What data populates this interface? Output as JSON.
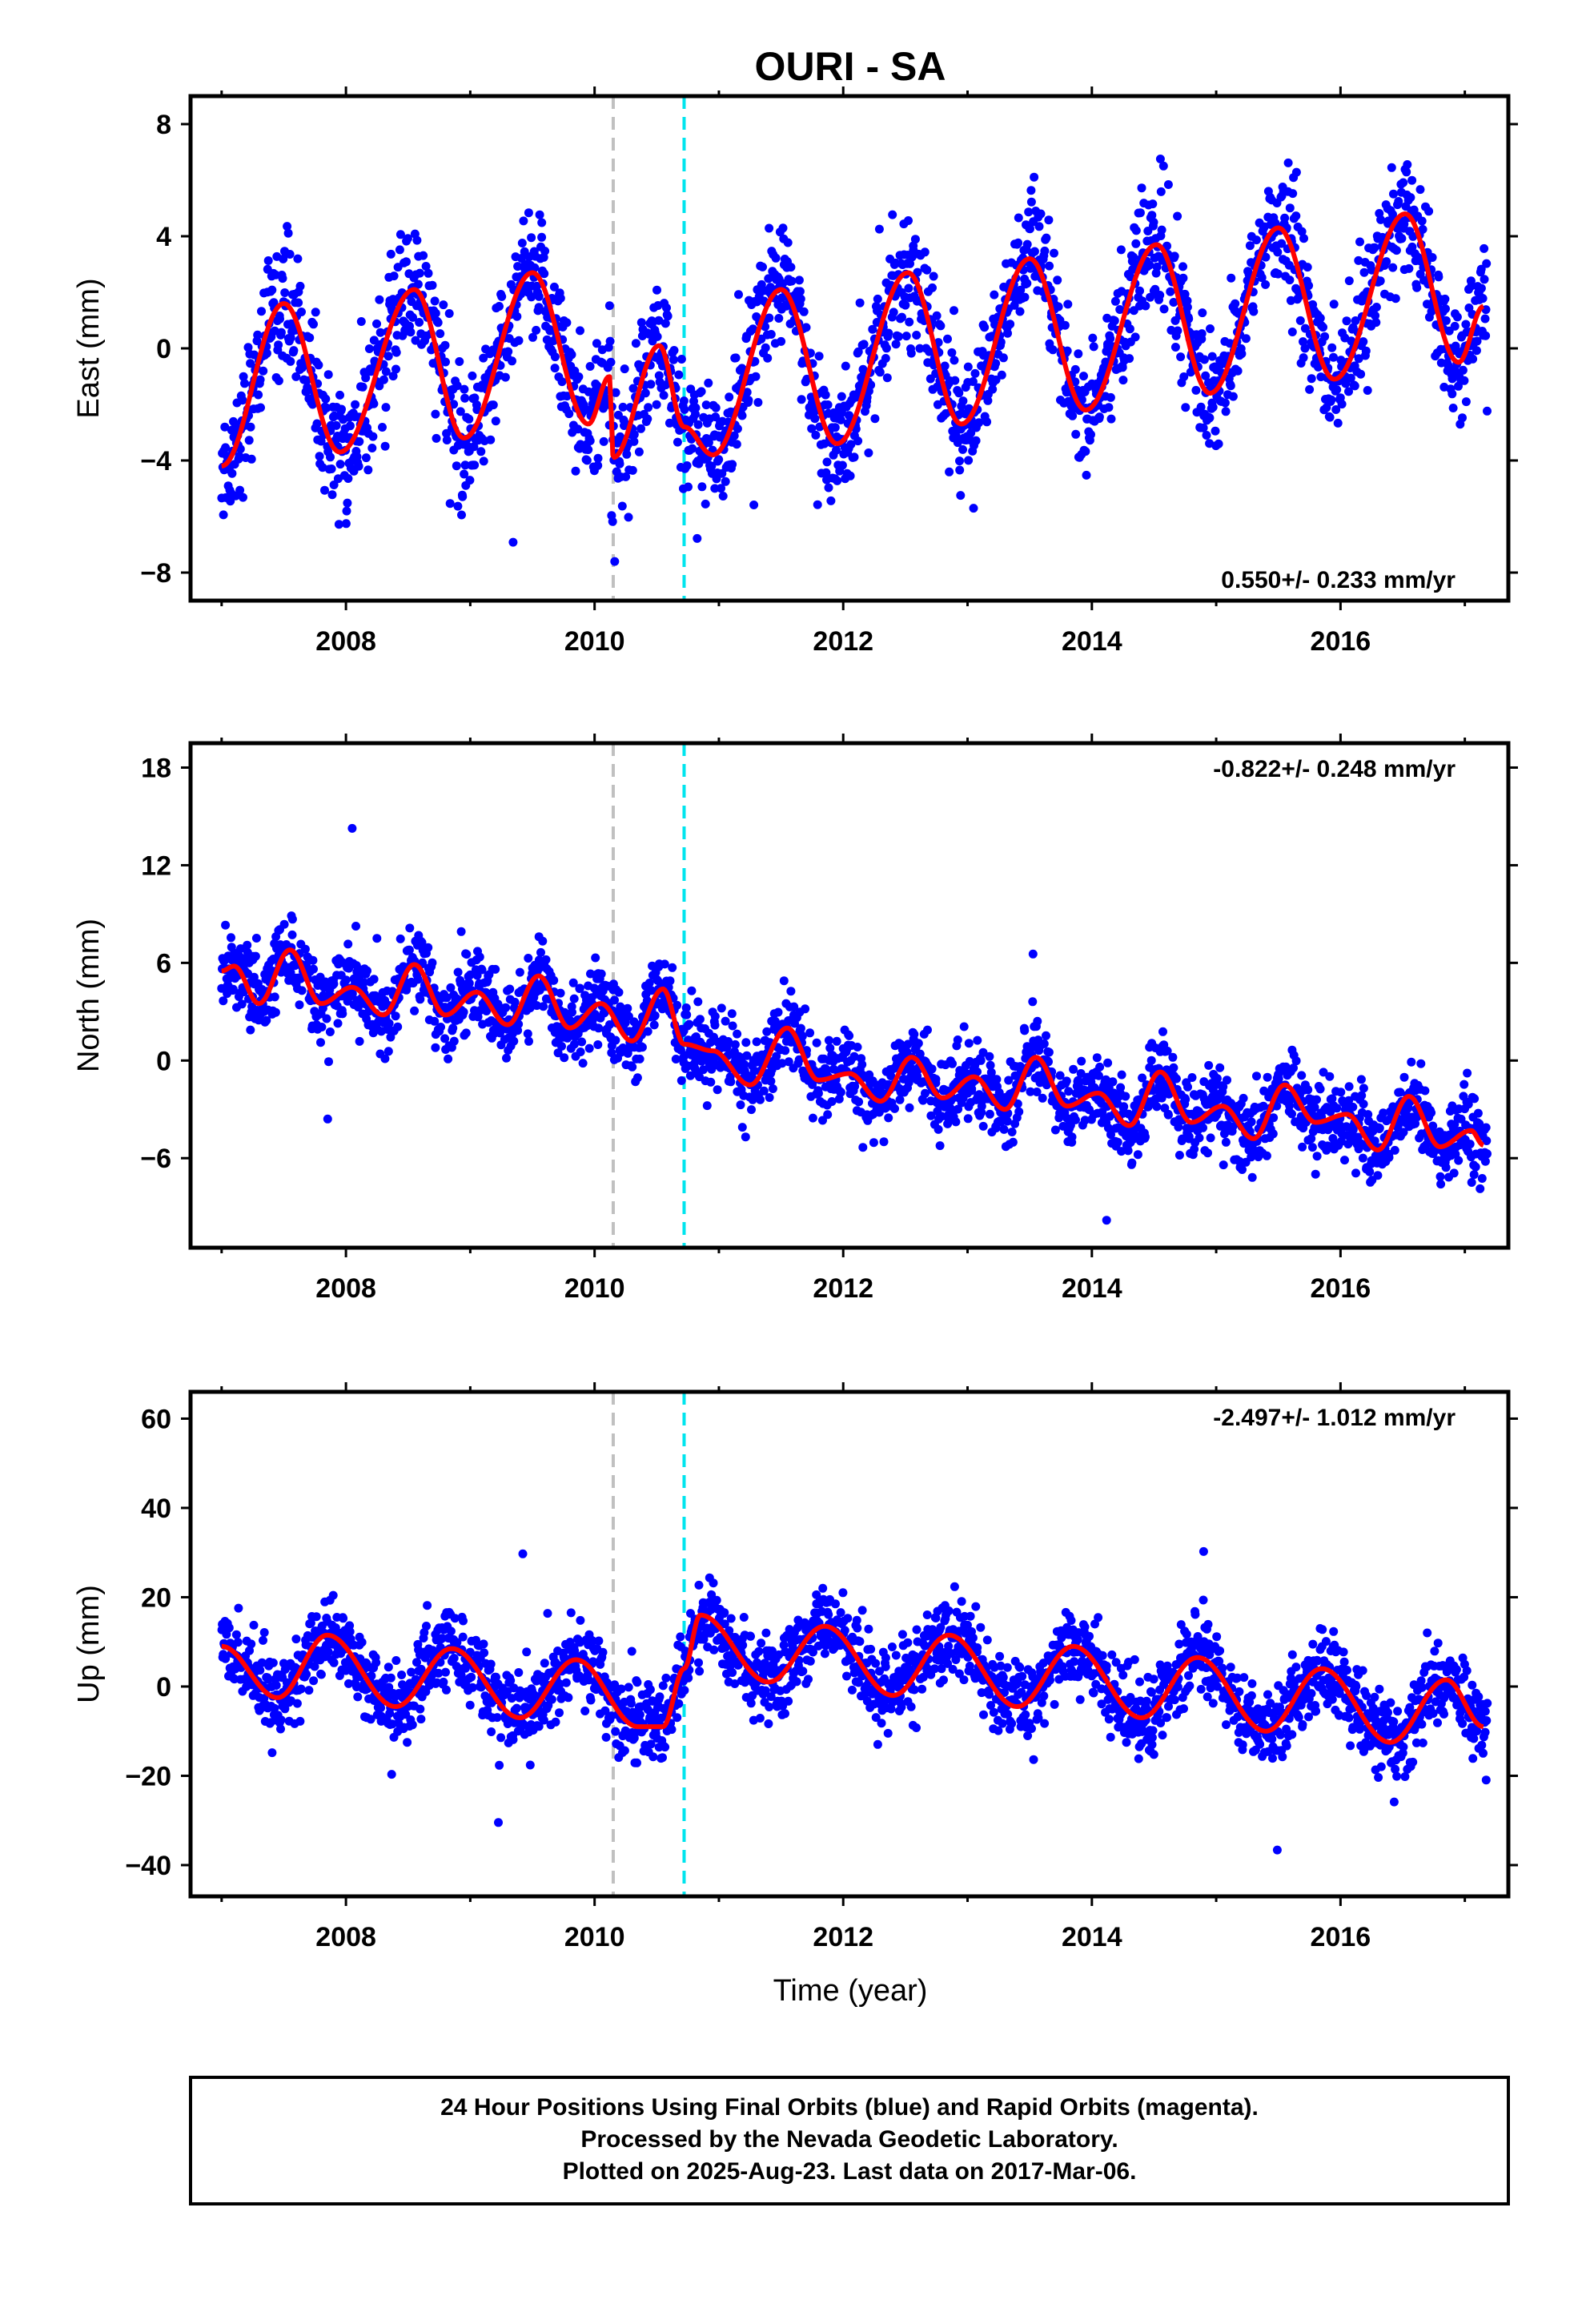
{
  "title": "OURI - SA",
  "x_axis_label": "Time (year)",
  "footer": {
    "line1": "24 Hour Positions Using Final Orbits (blue) and Rapid Orbits (magenta).",
    "line2": "Processed by the Nevada Geodetic Laboratory.",
    "line3": "Plotted on 2025-Aug-23. Last data on 2017-Mar-06."
  },
  "colors": {
    "final_orbits": "#0000ff",
    "model_fit": "#ff0000",
    "event_gray": "#c0c0c0",
    "event_cyan": "#00e5ee"
  },
  "chart_data": [
    {
      "type": "scatter",
      "title": "OURI - SA",
      "ylabel": "East (mm)",
      "xlabel": "",
      "xlim": [
        2006.75,
        2017.35
      ],
      "ylim": [
        -9,
        9
      ],
      "x_ticks": [
        2008,
        2010,
        2012,
        2014,
        2016
      ],
      "y_ticks": [
        -8,
        -4,
        0,
        4,
        8
      ],
      "grid": false,
      "rate_label": "0.550+/- 0.233 mm/yr",
      "rate_position": "bottom-right",
      "events": [
        {
          "x": 2010.15,
          "color": "gray"
        },
        {
          "x": 2010.72,
          "color": "cyan"
        }
      ],
      "data_span": [
        2007.0,
        2017.18
      ],
      "series": [
        {
          "style": "points",
          "color": "blue",
          "trend": {
            "at": 2007.0,
            "value": -1.6,
            "rate": 0.55
          },
          "seasonal": {
            "annual_amplitude": 3.1,
            "peak_year_fraction": 0.55
          },
          "scatter_sd": 1.1
        },
        {
          "style": "line",
          "color": "red",
          "x": [
            2007.0,
            2007.5,
            2007.95,
            2008.55,
            2008.95,
            2009.5,
            2009.95,
            2010.12,
            2010.15,
            2010.52,
            2010.72,
            2010.95,
            2011.5,
            2011.95,
            2012.52,
            2012.95,
            2013.5,
            2013.95,
            2014.52,
            2014.95,
            2015.5,
            2015.95,
            2016.52,
            2016.95,
            2017.15
          ],
          "values": [
            -4.2,
            1.6,
            -3.7,
            2.1,
            -3.2,
            2.7,
            -2.7,
            -1.0,
            -3.9,
            0.1,
            -2.8,
            -3.8,
            2.1,
            -3.4,
            2.7,
            -2.7,
            3.2,
            -2.2,
            3.7,
            -1.6,
            4.3,
            -1.1,
            4.8,
            -0.5,
            1.5
          ]
        }
      ]
    },
    {
      "type": "scatter",
      "ylabel": "North (mm)",
      "xlabel": "",
      "xlim": [
        2006.75,
        2017.35
      ],
      "ylim": [
        -11.5,
        19.5
      ],
      "x_ticks": [
        2008,
        2010,
        2012,
        2014,
        2016
      ],
      "y_ticks": [
        -6,
        0,
        6,
        12,
        18
      ],
      "grid": false,
      "rate_label": "-0.822+/- 0.248 mm/yr",
      "rate_position": "top-right",
      "events": [
        {
          "x": 2010.15,
          "color": "gray"
        },
        {
          "x": 2010.72,
          "color": "cyan"
        }
      ],
      "data_span": [
        2007.0,
        2017.18
      ],
      "series": [
        {
          "style": "points",
          "color": "blue",
          "trend": {
            "at": 2007.0,
            "value": 5.0,
            "rate": -0.82
          },
          "seasonal": {
            "annual_amplitude": 1.5,
            "peak_year_fraction": 0.55
          },
          "scatter_sd": 1.2
        },
        {
          "style": "line",
          "color": "red",
          "x": [
            2007.0,
            2007.1,
            2007.3,
            2007.55,
            2007.8,
            2008.05,
            2008.3,
            2008.55,
            2008.8,
            2009.05,
            2009.3,
            2009.55,
            2009.8,
            2010.05,
            2010.3,
            2010.55,
            2010.72,
            2010.95,
            2011.25,
            2011.55,
            2011.8,
            2012.05,
            2012.3,
            2012.55,
            2012.8,
            2013.05,
            2013.3,
            2013.55,
            2013.8,
            2014.05,
            2014.3,
            2014.55,
            2014.8,
            2015.05,
            2015.3,
            2015.55,
            2015.8,
            2016.05,
            2016.3,
            2016.55,
            2016.8,
            2017.05,
            2017.15
          ],
          "values": [
            5.5,
            5.8,
            3.5,
            6.8,
            3.5,
            4.5,
            2.8,
            5.9,
            2.8,
            4.2,
            2.2,
            5.2,
            2.0,
            3.5,
            1.2,
            4.4,
            1.0,
            0.6,
            -1.5,
            2.0,
            -1.2,
            -0.8,
            -2.5,
            0.2,
            -2.3,
            -1.0,
            -3.0,
            0.2,
            -2.8,
            -2.0,
            -4.0,
            -0.7,
            -3.8,
            -2.8,
            -4.8,
            -1.5,
            -3.8,
            -3.3,
            -5.5,
            -2.2,
            -5.3,
            -4.3,
            -5.2
          ]
        }
      ]
    },
    {
      "type": "scatter",
      "ylabel": "Up (mm)",
      "xlabel": "Time (year)",
      "xlim": [
        2006.75,
        2017.35
      ],
      "ylim": [
        -47,
        66
      ],
      "x_ticks": [
        2008,
        2010,
        2012,
        2014,
        2016
      ],
      "y_ticks": [
        -40,
        -20,
        0,
        20,
        40,
        60
      ],
      "grid": false,
      "rate_label": "-2.497+/- 1.012 mm/yr",
      "rate_position": "top-right",
      "events": [
        {
          "x": 2010.15,
          "color": "gray"
        },
        {
          "x": 2010.72,
          "color": "cyan"
        }
      ],
      "data_span": [
        2007.0,
        2017.18
      ],
      "series": [
        {
          "style": "points",
          "color": "blue",
          "trend": {
            "at": 2007.0,
            "value": 4.0,
            "rate": -2.5
          },
          "seasonal": {
            "annual_amplitude": 8.0,
            "peak_year_fraction": 0.85
          },
          "scatter_sd": 4.5
        },
        {
          "style": "line",
          "color": "red",
          "x": [
            2007.0,
            2007.45,
            2007.85,
            2008.4,
            2008.85,
            2009.4,
            2009.85,
            2010.35,
            2010.55,
            2010.72,
            2010.85,
            2011.4,
            2011.85,
            2012.4,
            2012.85,
            2013.4,
            2013.85,
            2014.4,
            2014.85,
            2015.4,
            2015.85,
            2016.4,
            2016.85,
            2017.15
          ],
          "values": [
            9,
            -2.5,
            11.5,
            -4.5,
            8.5,
            -7,
            6,
            -9,
            -9,
            4,
            16,
            1,
            13.5,
            -2,
            11.5,
            -4.5,
            9,
            -7,
            6.5,
            -10,
            4,
            -12.5,
            1.5,
            -9
          ]
        }
      ]
    }
  ]
}
